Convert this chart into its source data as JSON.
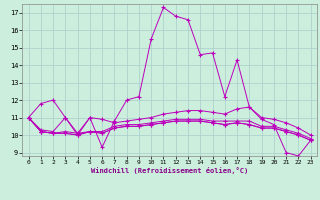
{
  "xlabel": "Windchill (Refroidissement éolien,°C)",
  "ylabel": "",
  "background_color": "#cceedd",
  "grid_color": "#aacccc",
  "line_color": "#bb00bb",
  "xlim": [
    -0.5,
    23.5
  ],
  "ylim": [
    8.8,
    17.5
  ],
  "xticks": [
    0,
    1,
    2,
    3,
    4,
    5,
    6,
    7,
    8,
    9,
    10,
    11,
    12,
    13,
    14,
    15,
    16,
    17,
    18,
    19,
    20,
    21,
    22,
    23
  ],
  "yticks": [
    9,
    10,
    11,
    12,
    13,
    14,
    15,
    16,
    17
  ],
  "lines": [
    [
      11.0,
      11.8,
      12.0,
      11.0,
      10.1,
      11.0,
      9.3,
      10.8,
      12.0,
      12.2,
      15.5,
      17.3,
      16.8,
      16.6,
      14.6,
      14.7,
      12.2,
      14.3,
      11.6,
      10.9,
      10.6,
      9.0,
      8.8,
      9.7
    ],
    [
      11.0,
      10.3,
      10.2,
      11.0,
      10.0,
      11.0,
      10.9,
      10.7,
      10.8,
      10.9,
      11.0,
      11.2,
      11.3,
      11.4,
      11.4,
      11.3,
      11.2,
      11.5,
      11.6,
      11.0,
      10.9,
      10.7,
      10.4,
      10.0
    ],
    [
      11.0,
      10.2,
      10.1,
      10.1,
      10.0,
      10.2,
      10.1,
      10.4,
      10.5,
      10.5,
      10.6,
      10.7,
      10.8,
      10.8,
      10.8,
      10.7,
      10.6,
      10.7,
      10.6,
      10.4,
      10.4,
      10.2,
      10.0,
      9.7
    ],
    [
      11.0,
      10.2,
      10.1,
      10.1,
      10.0,
      10.2,
      10.1,
      10.4,
      10.5,
      10.5,
      10.6,
      10.7,
      10.8,
      10.8,
      10.8,
      10.7,
      10.6,
      10.7,
      10.6,
      10.4,
      10.4,
      10.2,
      10.0,
      9.7
    ],
    [
      11.0,
      10.2,
      10.1,
      10.2,
      10.1,
      10.2,
      10.2,
      10.5,
      10.6,
      10.6,
      10.7,
      10.8,
      10.9,
      10.9,
      10.9,
      10.8,
      10.8,
      10.8,
      10.8,
      10.5,
      10.5,
      10.3,
      10.1,
      9.8
    ]
  ]
}
